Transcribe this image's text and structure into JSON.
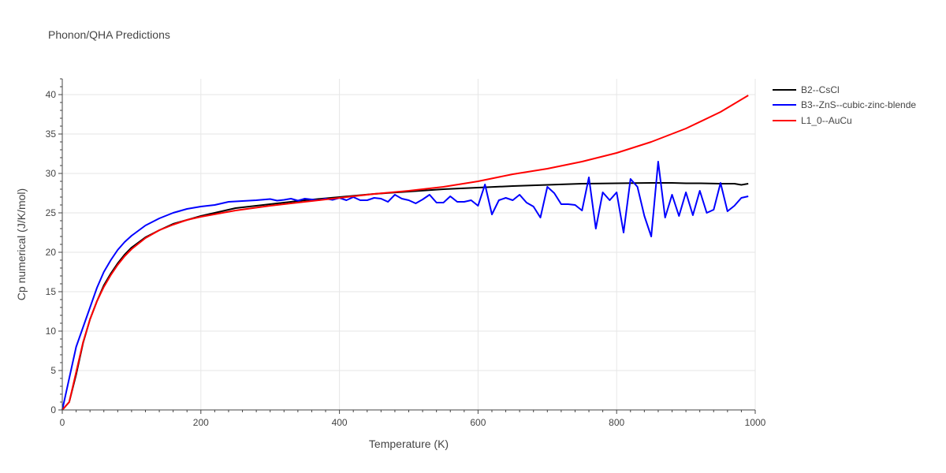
{
  "chart_data": {
    "type": "line",
    "title": "Phonon/QHA Predictions",
    "xlabel": "Temperature (K)",
    "ylabel": "Cp numerical (J/K/mol)",
    "xlim": [
      0,
      1000
    ],
    "ylim": [
      0,
      42
    ],
    "xticks": [
      0,
      200,
      400,
      600,
      800,
      1000
    ],
    "yticks": [
      0,
      5,
      10,
      15,
      20,
      25,
      30,
      35,
      40
    ],
    "grid": true,
    "legend_position": "top-right",
    "series": [
      {
        "name": "B2--CsCl",
        "color": "#000000",
        "x": [
          0,
          10,
          20,
          30,
          40,
          50,
          60,
          70,
          80,
          90,
          100,
          120,
          140,
          160,
          180,
          200,
          250,
          300,
          350,
          400,
          450,
          500,
          550,
          600,
          650,
          700,
          750,
          800,
          850,
          880,
          900,
          920,
          950,
          970,
          980,
          990
        ],
        "y": [
          0,
          1.0,
          4.5,
          8.5,
          11.5,
          13.8,
          15.8,
          17.3,
          18.6,
          19.7,
          20.6,
          21.9,
          22.8,
          23.6,
          24.1,
          24.6,
          25.6,
          26.1,
          26.6,
          27.0,
          27.4,
          27.7,
          28.0,
          28.2,
          28.4,
          28.55,
          28.7,
          28.75,
          28.8,
          28.8,
          28.75,
          28.75,
          28.7,
          28.7,
          28.55,
          28.7
        ]
      },
      {
        "name": "B3--ZnS--cubic-zinc-blende",
        "color": "#0000ff",
        "x": [
          0,
          10,
          20,
          30,
          40,
          50,
          60,
          70,
          80,
          90,
          100,
          120,
          140,
          160,
          180,
          200,
          220,
          240,
          260,
          280,
          300,
          310,
          320,
          330,
          340,
          350,
          360,
          370,
          380,
          390,
          400,
          410,
          420,
          430,
          440,
          450,
          460,
          470,
          480,
          490,
          500,
          510,
          520,
          530,
          540,
          550,
          560,
          570,
          580,
          590,
          600,
          610,
          620,
          630,
          640,
          650,
          660,
          670,
          680,
          690,
          700,
          710,
          720,
          730,
          740,
          750,
          760,
          770,
          780,
          790,
          800,
          810,
          820,
          830,
          840,
          850,
          860,
          870,
          880,
          890,
          900,
          910,
          920,
          930,
          940,
          950,
          960,
          970,
          980,
          990
        ],
        "y": [
          0,
          4.0,
          8.0,
          10.5,
          13.0,
          15.5,
          17.5,
          19.0,
          20.3,
          21.3,
          22.1,
          23.4,
          24.3,
          25.0,
          25.5,
          25.8,
          26.0,
          26.4,
          26.5,
          26.6,
          26.75,
          26.55,
          26.65,
          26.8,
          26.55,
          26.8,
          26.7,
          26.6,
          26.8,
          26.65,
          26.9,
          26.6,
          27.0,
          26.6,
          26.6,
          26.9,
          26.8,
          26.4,
          27.3,
          26.8,
          26.6,
          26.2,
          26.7,
          27.3,
          26.3,
          26.3,
          27.1,
          26.4,
          26.4,
          26.6,
          25.9,
          28.6,
          24.8,
          26.6,
          26.9,
          26.6,
          27.3,
          26.3,
          25.8,
          24.4,
          28.3,
          27.5,
          26.1,
          26.1,
          26.0,
          25.3,
          29.5,
          23.0,
          27.6,
          26.6,
          27.6,
          22.5,
          29.3,
          28.3,
          24.6,
          22.0,
          31.5,
          24.4,
          27.3,
          24.6,
          27.6,
          24.7,
          27.8,
          25.0,
          25.4,
          28.8,
          25.2,
          25.9,
          26.9,
          27.1
        ]
      },
      {
        "name": "L1_0--AuCu",
        "color": "#ff0000",
        "x": [
          0,
          10,
          20,
          30,
          40,
          50,
          60,
          70,
          80,
          90,
          100,
          120,
          140,
          160,
          180,
          200,
          250,
          300,
          350,
          400,
          450,
          500,
          550,
          600,
          650,
          700,
          750,
          800,
          850,
          900,
          950,
          990
        ],
        "y": [
          0,
          1.0,
          4.8,
          8.6,
          11.5,
          13.8,
          15.6,
          17.1,
          18.4,
          19.5,
          20.4,
          21.8,
          22.8,
          23.5,
          24.1,
          24.5,
          25.3,
          25.9,
          26.4,
          26.9,
          27.4,
          27.8,
          28.3,
          29.0,
          29.9,
          30.6,
          31.5,
          32.6,
          34.0,
          35.7,
          37.8,
          39.9
        ]
      }
    ]
  }
}
